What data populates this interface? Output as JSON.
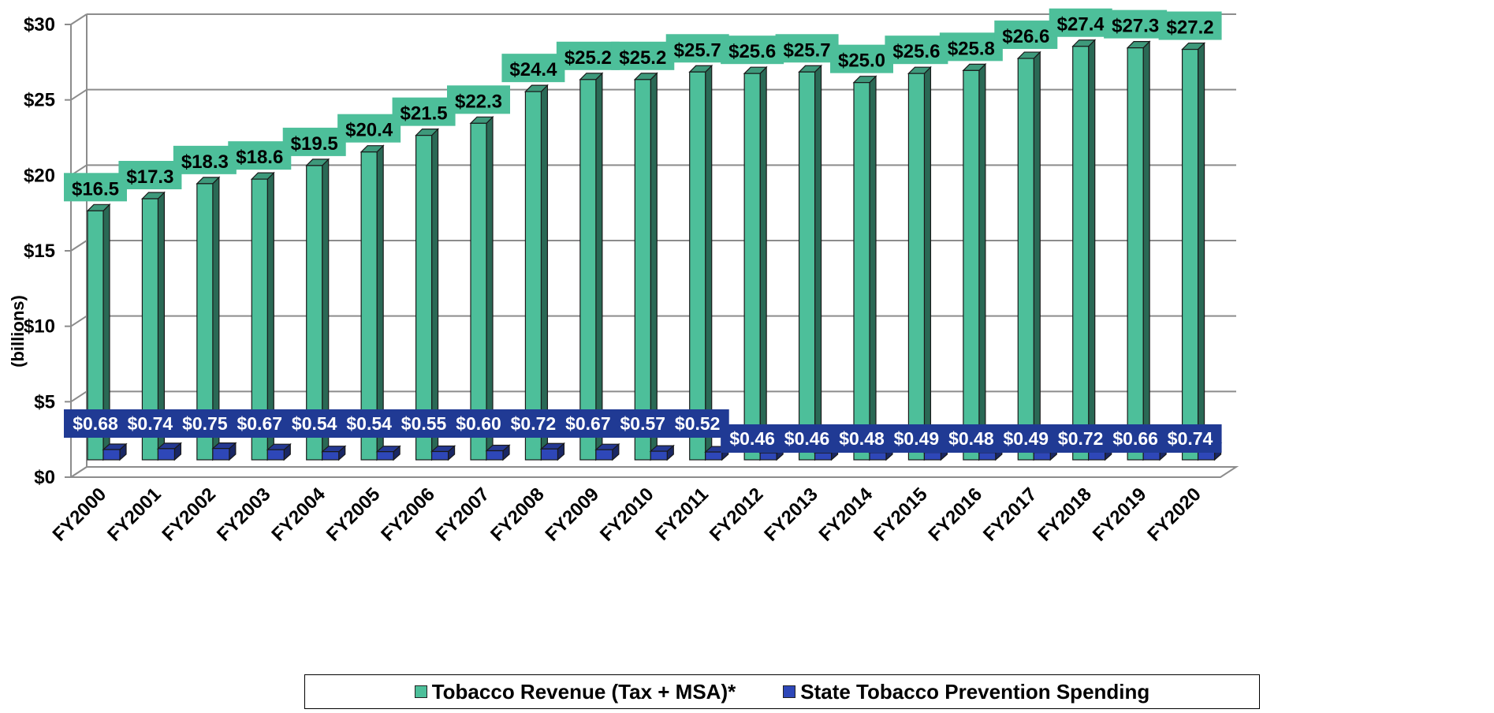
{
  "chart_data": {
    "type": "bar",
    "ylabel": "(billions)",
    "ylim": [
      0,
      30
    ],
    "yticks": [
      "$0",
      "$5",
      "$10",
      "$15",
      "$20",
      "$25",
      "$30"
    ],
    "grid": true,
    "legend_position": "bottom",
    "categories": [
      "FY2000",
      "FY2001",
      "FY2002",
      "FY2003",
      "FY2004",
      "FY2005",
      "FY2006",
      "FY2007",
      "FY2008",
      "FY2009",
      "FY2010",
      "FY2011",
      "FY2012",
      "FY2013",
      "FY2014",
      "FY2015",
      "FY2016",
      "FY2017",
      "FY2018",
      "FY2019",
      "FY2020"
    ],
    "series": [
      {
        "name": "Tobacco Revenue (Tax + MSA)*",
        "color": "#4DBF9A",
        "label_bg": "#4DBF9A",
        "values": [
          16.5,
          17.3,
          18.3,
          18.6,
          19.5,
          20.4,
          21.5,
          22.3,
          24.4,
          25.2,
          25.2,
          25.7,
          25.6,
          25.7,
          25.0,
          25.6,
          25.8,
          26.6,
          27.4,
          27.3,
          27.2
        ],
        "labels": [
          "$16.5",
          "$17.3",
          "$18.3",
          "$18.6",
          "$19.5",
          "$20.4",
          "$21.5",
          "$22.3",
          "$24.4",
          "$25.2",
          "$25.2",
          "$25.7",
          "$25.6",
          "$25.7",
          "$25.0",
          "$25.6",
          "$25.8",
          "$26.6",
          "$27.4",
          "$27.3",
          "$27.2"
        ]
      },
      {
        "name": "State Tobacco Prevention Spending",
        "color": "#2E47B8",
        "label_bg": "#203A94",
        "values": [
          0.68,
          0.74,
          0.75,
          0.67,
          0.54,
          0.54,
          0.55,
          0.6,
          0.72,
          0.67,
          0.57,
          0.52,
          0.46,
          0.46,
          0.48,
          0.49,
          0.48,
          0.49,
          0.72,
          0.66,
          0.74
        ],
        "labels": [
          "$0.68",
          "$0.74",
          "$0.75",
          "$0.67",
          "$0.54",
          "$0.54",
          "$0.55",
          "$0.60",
          "$0.72",
          "$0.67",
          "$0.57",
          "$0.52",
          "$0.46",
          "$0.46",
          "$0.48",
          "$0.49",
          "$0.48",
          "$0.49",
          "$0.72",
          "$0.66",
          "$0.74"
        ]
      }
    ]
  }
}
